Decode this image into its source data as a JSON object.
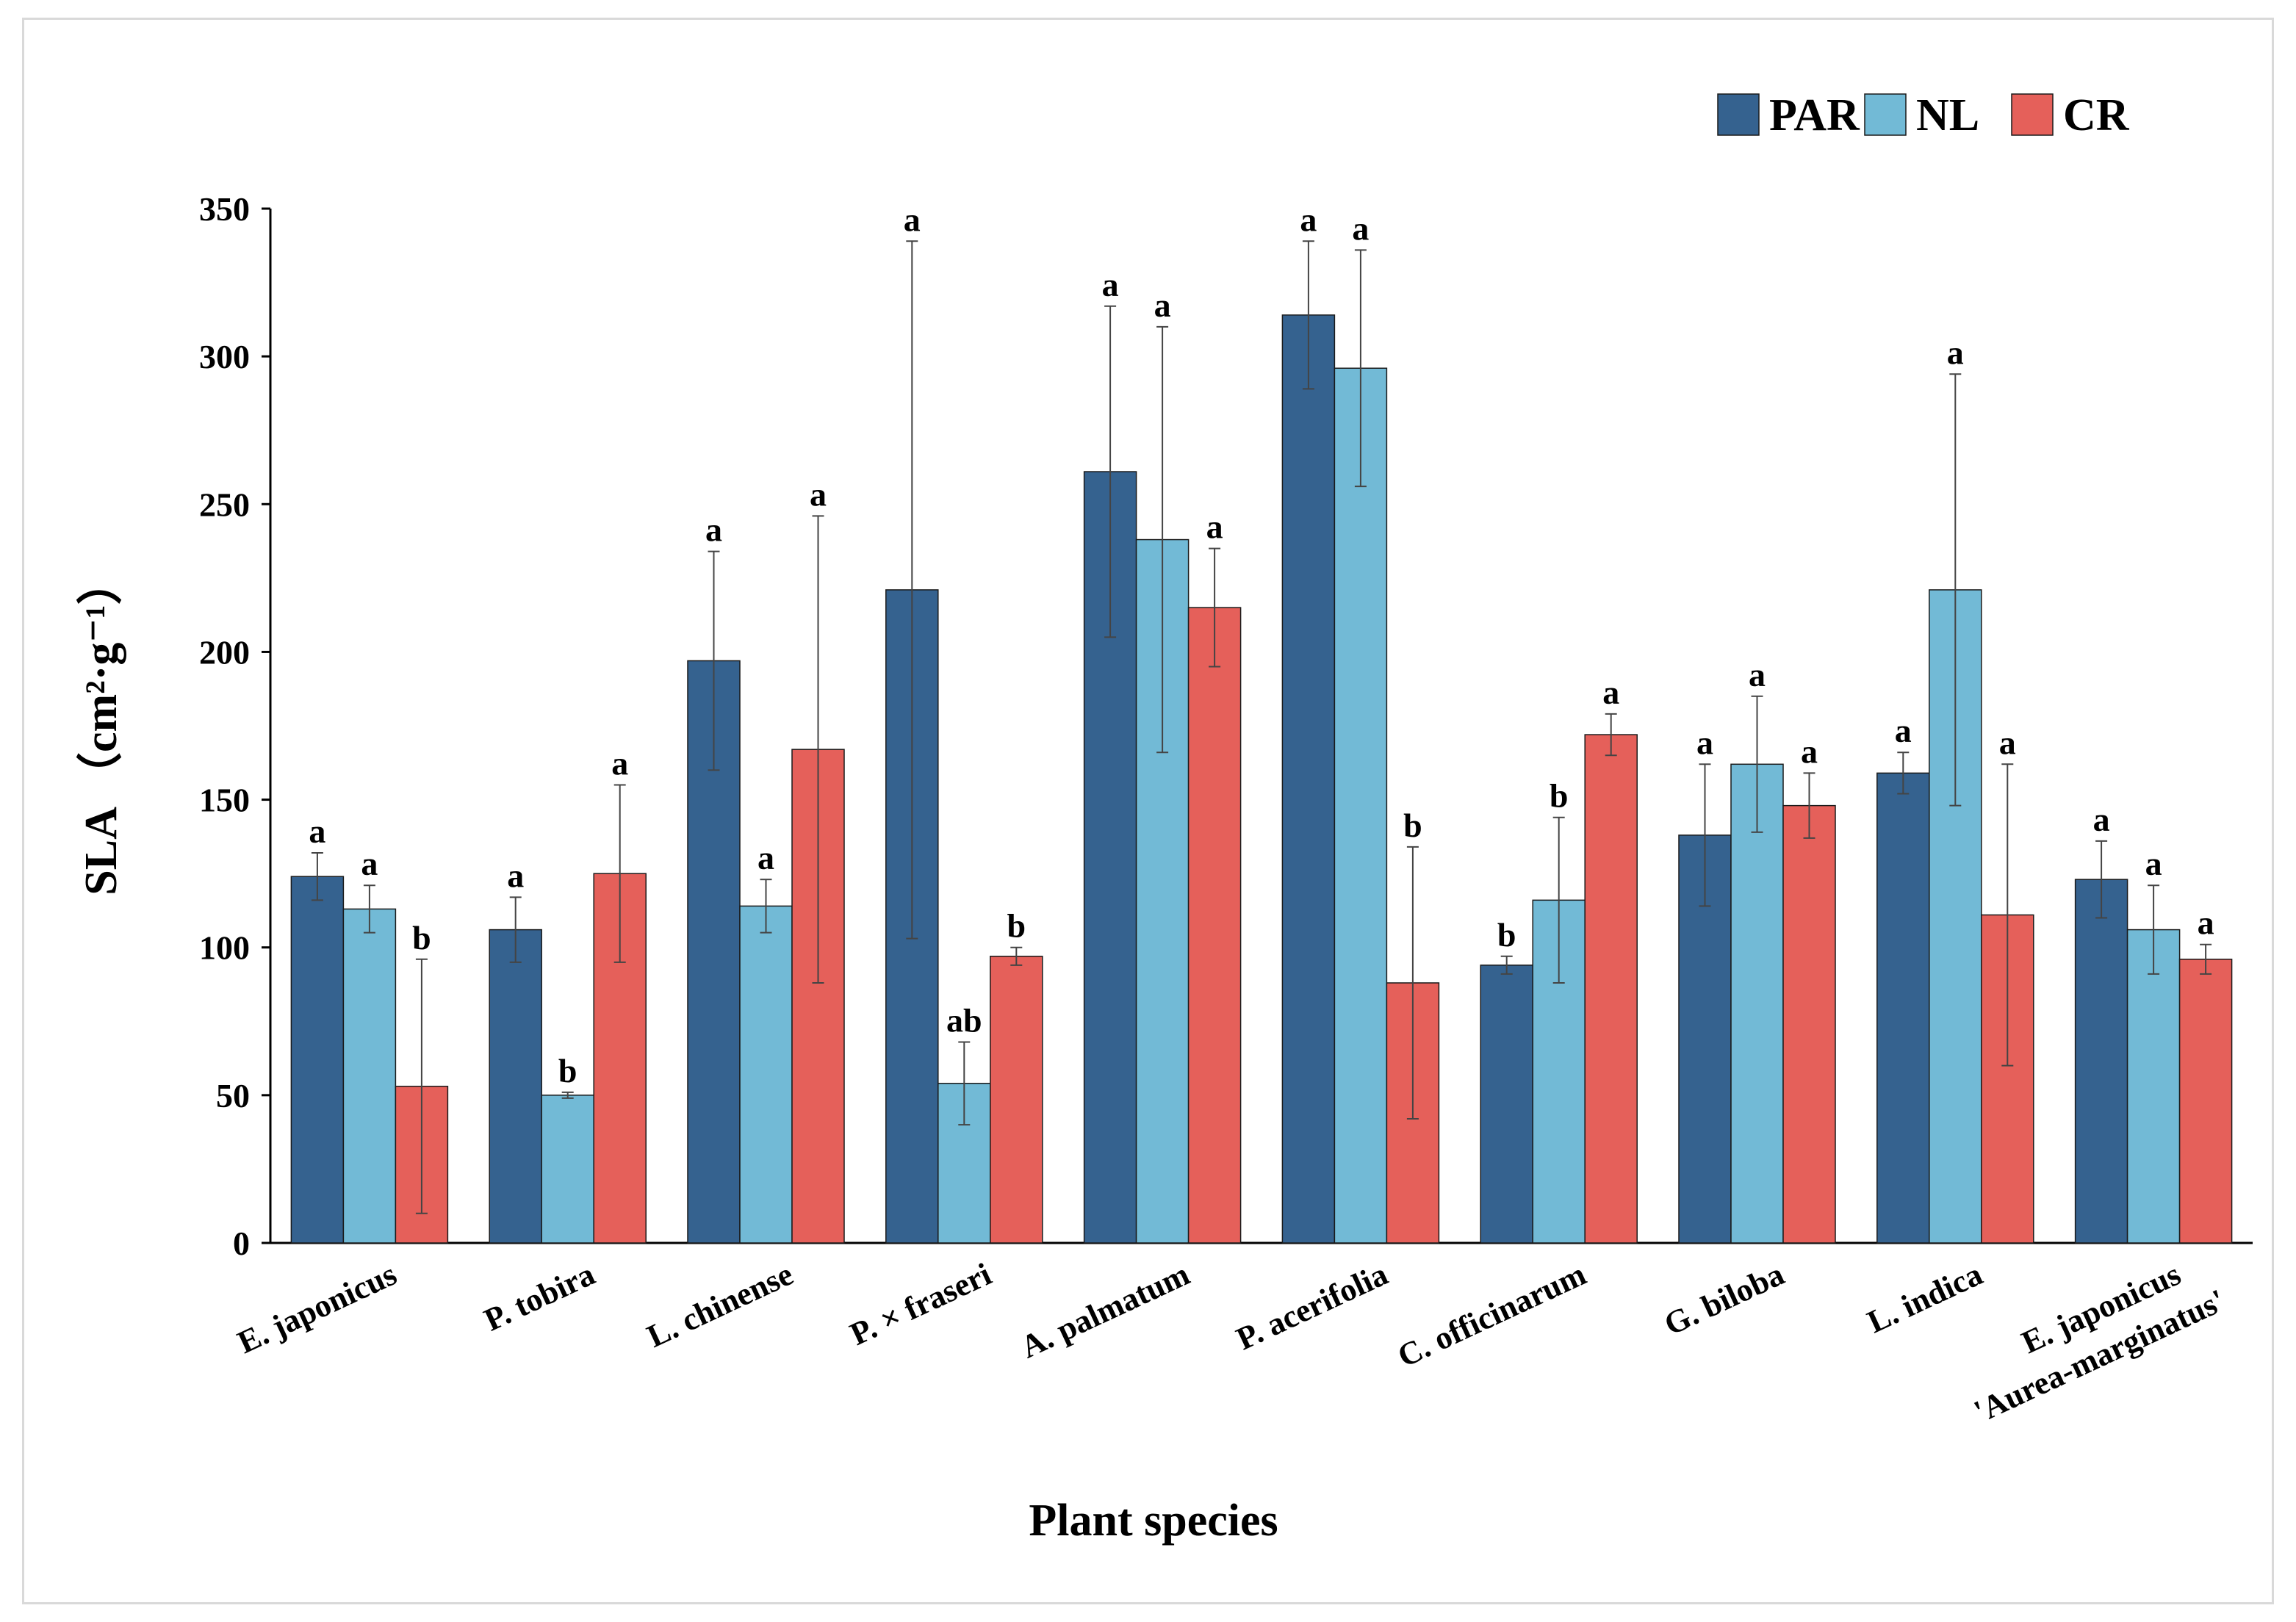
{
  "chart_data": {
    "type": "bar",
    "title": "",
    "xlabel": "Plant species",
    "ylabel": "SLA （cm²·g⁻¹）",
    "ylim": [
      0,
      350
    ],
    "yticks": [
      0,
      50,
      100,
      150,
      200,
      250,
      300,
      350
    ],
    "grid": false,
    "legend_position": "top-right",
    "categories": [
      "E. japonicus",
      "P. tobira",
      "L. chinense",
      "P. × fraseri",
      "A. palmatum",
      "P. acerifolia",
      "C. officinarum",
      "G. biloba",
      "L. indica",
      "E. japonicus 'Aurea-marginatus'"
    ],
    "series": [
      {
        "name": "PAR",
        "color": "#35628f",
        "values": [
          124,
          106,
          197,
          221,
          261,
          314,
          94,
          138,
          159,
          123
        ],
        "errors": [
          8,
          11,
          37,
          118,
          56,
          25,
          3,
          24,
          7,
          13
        ],
        "letters": [
          "a",
          "a",
          "a",
          "a",
          "a",
          "a",
          "b",
          "a",
          "a",
          "a"
        ]
      },
      {
        "name": "NL",
        "color": "#72bad6",
        "values": [
          113,
          50,
          114,
          54,
          238,
          296,
          116,
          162,
          221,
          106
        ],
        "errors": [
          8,
          1,
          9,
          14,
          72,
          40,
          28,
          23,
          73,
          15
        ],
        "letters": [
          "a",
          "b",
          "a",
          "ab",
          "a",
          "a",
          "b",
          "a",
          "a",
          "a"
        ]
      },
      {
        "name": "CR",
        "color": "#e5605a",
        "values": [
          53,
          125,
          167,
          97,
          215,
          88,
          172,
          148,
          111,
          96
        ],
        "errors": [
          43,
          30,
          79,
          3,
          20,
          46,
          7,
          11,
          51,
          5
        ],
        "letters": [
          "b",
          "a",
          "a",
          "b",
          "a",
          "b",
          "a",
          "a",
          "a",
          "a"
        ]
      }
    ]
  }
}
